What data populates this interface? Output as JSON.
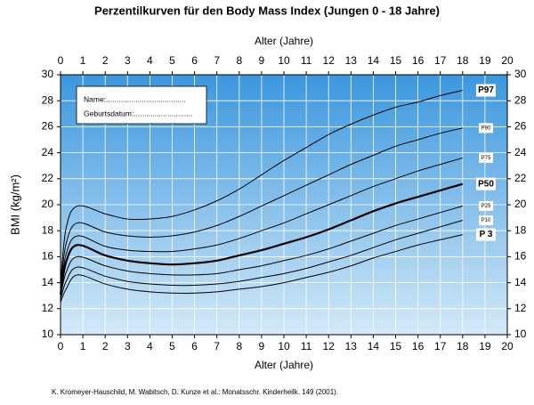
{
  "chart_data": {
    "type": "line",
    "title": "Perzentilkurven für den Body Mass Index (Jungen 0 - 18 Jahre)",
    "x_label": "Alter (Jahre)",
    "y_label": "BMI (kg/m²)",
    "source": "K. Kromeyer-Hauschild, M. Wabitsch, D. Kunze et al.: Monatsschr. Kinderheilk. 149 (2001).",
    "annotations": [
      "Name:......................................",
      "Geburtsdatum:............................"
    ],
    "x": [
      0,
      0.25,
      0.75,
      2,
      3,
      4,
      5,
      6,
      7,
      8,
      9,
      10,
      11,
      12,
      13,
      14,
      15,
      16,
      17,
      18
    ],
    "series": [
      {
        "name": "P97",
        "color": "#000000",
        "values": [
          14.0,
          18.2,
          19.9,
          19.3,
          18.9,
          18.9,
          19.1,
          19.6,
          20.3,
          21.2,
          22.3,
          23.4,
          24.4,
          25.4,
          26.2,
          26.9,
          27.5,
          27.9,
          28.4,
          28.8
        ]
      },
      {
        "name": "P90",
        "color": "#000000",
        "values": [
          13.7,
          17.0,
          18.6,
          17.9,
          17.6,
          17.5,
          17.6,
          17.9,
          18.4,
          19.1,
          19.9,
          20.7,
          21.5,
          22.3,
          23.1,
          23.8,
          24.5,
          25.0,
          25.5,
          25.9
        ]
      },
      {
        "name": "P75",
        "color": "#000000",
        "values": [
          13.4,
          16.2,
          17.6,
          16.8,
          16.5,
          16.4,
          16.4,
          16.6,
          16.9,
          17.4,
          18.0,
          18.6,
          19.3,
          20.0,
          20.7,
          21.4,
          22.0,
          22.6,
          23.1,
          23.6
        ]
      },
      {
        "name": "P50",
        "color": "#000000",
        "values": [
          13.1,
          15.6,
          16.9,
          16.1,
          15.7,
          15.5,
          15.4,
          15.5,
          15.7,
          16.1,
          16.5,
          17.0,
          17.5,
          18.1,
          18.8,
          19.5,
          20.1,
          20.6,
          21.1,
          21.6
        ]
      },
      {
        "name": "P25",
        "color": "#000000",
        "values": [
          12.9,
          14.8,
          16.0,
          15.3,
          14.9,
          14.7,
          14.6,
          14.6,
          14.7,
          15.0,
          15.3,
          15.7,
          16.1,
          16.6,
          17.2,
          17.8,
          18.4,
          18.9,
          19.4,
          19.9
        ]
      },
      {
        "name": "P10",
        "color": "#000000",
        "values": [
          12.7,
          14.1,
          15.2,
          14.5,
          14.1,
          13.9,
          13.8,
          13.8,
          13.9,
          14.1,
          14.4,
          14.7,
          15.1,
          15.6,
          16.1,
          16.7,
          17.3,
          17.8,
          18.3,
          18.8
        ]
      },
      {
        "name": "P 3",
        "color": "#000000",
        "values": [
          12.5,
          13.5,
          14.6,
          13.9,
          13.5,
          13.3,
          13.2,
          13.2,
          13.3,
          13.5,
          13.7,
          14.0,
          14.4,
          14.8,
          15.3,
          15.9,
          16.4,
          16.9,
          17.3,
          17.7
        ]
      }
    ],
    "xlim": [
      0,
      20
    ],
    "xticks": [
      0,
      1,
      2,
      3,
      4,
      5,
      6,
      7,
      8,
      9,
      10,
      11,
      12,
      13,
      14,
      15,
      16,
      17,
      18,
      19,
      20
    ],
    "ylim": [
      10,
      30
    ],
    "yticks": [
      10,
      12,
      14,
      16,
      18,
      20,
      22,
      24,
      26,
      28,
      30
    ],
    "grid": true
  }
}
